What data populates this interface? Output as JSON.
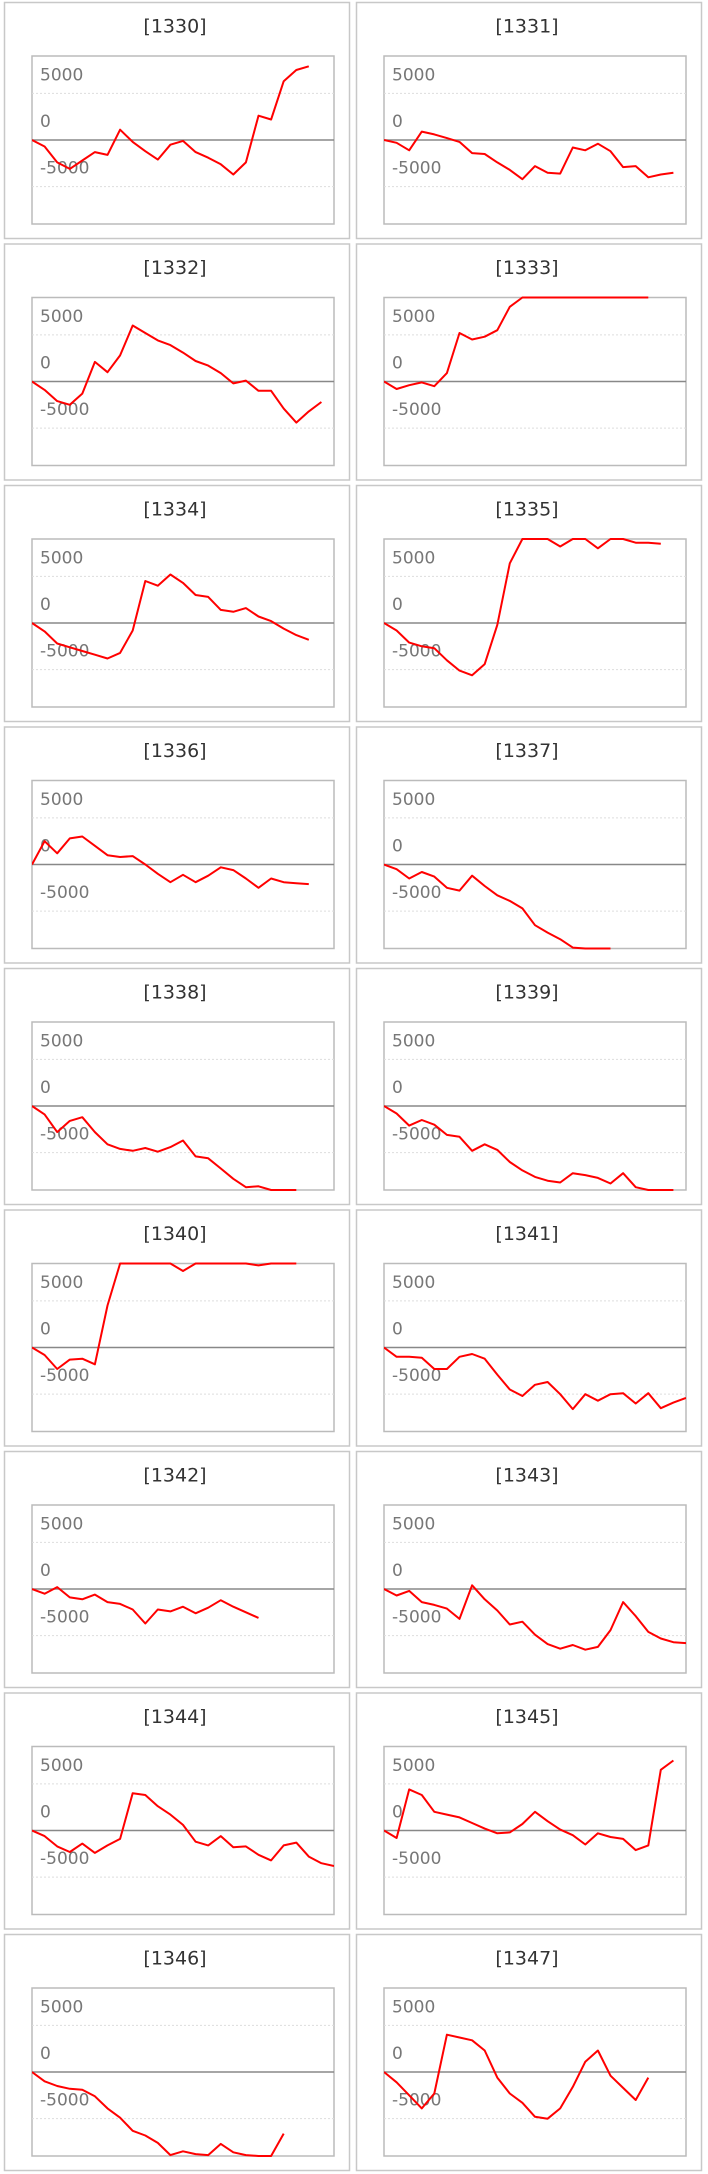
{
  "chart_data": [
    {
      "type": "line",
      "title": "[1330]",
      "color": "#ff0000",
      "ylim": [
        -9000,
        9000
      ],
      "yticks": [
        -5000,
        0,
        5000
      ],
      "grid": true,
      "values": [
        0,
        -700,
        -2400,
        -3100,
        -2200,
        -1300,
        -1600,
        1100,
        -200,
        -1200,
        -2100,
        -500,
        -100,
        -1300,
        -1900,
        -2600,
        -3700,
        -2400,
        2600,
        2200,
        6300,
        7500,
        7900
      ]
    },
    {
      "type": "line",
      "title": "[1331]",
      "color": "#ff0000",
      "ylim": [
        -9000,
        9000
      ],
      "yticks": [
        -5000,
        0,
        5000
      ],
      "grid": true,
      "values": [
        0,
        -300,
        -1100,
        900,
        600,
        200,
        -200,
        -1400,
        -1500,
        -2400,
        -3200,
        -4200,
        -2800,
        -3500,
        -3600,
        -800,
        -1100,
        -400,
        -1200,
        -2900,
        -2800,
        -4000,
        -3700,
        -3500
      ]
    },
    {
      "type": "line",
      "title": "[1332]",
      "color": "#ff0000",
      "ylim": [
        -9000,
        9000
      ],
      "yticks": [
        -5000,
        0,
        5000
      ],
      "grid": true,
      "values": [
        0,
        -900,
        -2100,
        -2500,
        -1300,
        2100,
        1000,
        2800,
        6000,
        5200,
        4400,
        3900,
        3100,
        2200,
        1700,
        900,
        -200,
        100,
        -1000,
        -1000,
        -2900,
        -4400,
        -3200,
        -2200
      ]
    },
    {
      "type": "line",
      "title": "[1333]",
      "color": "#ff0000",
      "ylim": [
        -9000,
        9000
      ],
      "yticks": [
        -5000,
        0,
        5000
      ],
      "grid": true,
      "values": [
        0,
        -800,
        -400,
        -100,
        -500,
        900,
        5200,
        4500,
        4800,
        5500,
        8000,
        9000,
        9000,
        9000,
        9000,
        9000,
        9000,
        9000,
        9000,
        9000,
        9000,
        9000
      ]
    },
    {
      "type": "line",
      "title": "[1334]",
      "color": "#ff0000",
      "ylim": [
        -9000,
        9000
      ],
      "yticks": [
        -5000,
        0,
        5000
      ],
      "grid": true,
      "values": [
        0,
        -900,
        -2200,
        -2600,
        -3000,
        -3400,
        -3800,
        -3200,
        -800,
        4500,
        4000,
        5200,
        4300,
        3000,
        2800,
        1400,
        1200,
        1600,
        700,
        200,
        -600,
        -1300,
        -1800
      ]
    },
    {
      "type": "line",
      "title": "[1335]",
      "color": "#ff0000",
      "ylim": [
        -9000,
        9000
      ],
      "yticks": [
        -5000,
        0,
        5000
      ],
      "grid": true,
      "values": [
        0,
        -800,
        -2100,
        -2500,
        -2700,
        -4000,
        -5100,
        -5600,
        -4400,
        -200,
        6400,
        9000,
        9000,
        9000,
        8200,
        9000,
        9000,
        8000,
        9000,
        9000,
        8600,
        8600,
        8500
      ]
    },
    {
      "type": "line",
      "title": "[1336]",
      "color": "#ff0000",
      "ylim": [
        -9000,
        9000
      ],
      "yticks": [
        -5000,
        0,
        5000
      ],
      "grid": true,
      "values": [
        0,
        2500,
        1200,
        2800,
        3000,
        2000,
        1000,
        800,
        900,
        0,
        -1000,
        -1900,
        -1100,
        -1900,
        -1200,
        -300,
        -600,
        -1500,
        -2500,
        -1500,
        -1900,
        -2000,
        -2100
      ]
    },
    {
      "type": "line",
      "title": "[1337]",
      "color": "#ff0000",
      "ylim": [
        -9000,
        9000
      ],
      "yticks": [
        -5000,
        0,
        5000
      ],
      "grid": true,
      "values": [
        0,
        -500,
        -1500,
        -800,
        -1300,
        -2500,
        -2800,
        -1200,
        -2300,
        -3300,
        -3900,
        -4700,
        -6500,
        -7300,
        -8000,
        -8900,
        -9000,
        -9000,
        -9000
      ]
    },
    {
      "type": "line",
      "title": "[1338]",
      "color": "#ff0000",
      "ylim": [
        -9000,
        9000
      ],
      "yticks": [
        -5000,
        0,
        5000
      ],
      "grid": true,
      "values": [
        0,
        -900,
        -2800,
        -1600,
        -1200,
        -2800,
        -4100,
        -4600,
        -4800,
        -4500,
        -4900,
        -4400,
        -3700,
        -5400,
        -5600,
        -6700,
        -7800,
        -8700,
        -8600,
        -9000,
        -9000,
        -9000
      ]
    },
    {
      "type": "line",
      "title": "[1339]",
      "color": "#ff0000",
      "ylim": [
        -9000,
        9000
      ],
      "yticks": [
        -5000,
        0,
        5000
      ],
      "grid": true,
      "values": [
        0,
        -800,
        -2100,
        -1500,
        -2000,
        -3100,
        -3300,
        -4800,
        -4100,
        -4700,
        -6000,
        -6900,
        -7600,
        -8000,
        -8200,
        -7200,
        -7400,
        -7700,
        -8300,
        -7200,
        -8700,
        -9000,
        -9000,
        -9000
      ]
    },
    {
      "type": "line",
      "title": "[1340]",
      "color": "#ff0000",
      "ylim": [
        -9000,
        9000
      ],
      "yticks": [
        -5000,
        0,
        5000
      ],
      "grid": true,
      "values": [
        0,
        -800,
        -2300,
        -1300,
        -1200,
        -1800,
        4500,
        9000,
        9000,
        9000,
        9000,
        9000,
        8200,
        9000,
        9000,
        9000,
        9000,
        9000,
        8800,
        9000,
        9000,
        9000
      ]
    },
    {
      "type": "line",
      "title": "[1341]",
      "color": "#ff0000",
      "ylim": [
        -9000,
        9000
      ],
      "yticks": [
        -5000,
        0,
        5000
      ],
      "grid": true,
      "values": [
        0,
        -1000,
        -1000,
        -1100,
        -2300,
        -2300,
        -1000,
        -700,
        -1200,
        -2900,
        -4500,
        -5200,
        -4000,
        -3700,
        -5000,
        -6600,
        -5000,
        -5700,
        -5000,
        -4900,
        -6000,
        -4900,
        -6500,
        -5900,
        -5400
      ]
    },
    {
      "type": "line",
      "title": "[1342]",
      "color": "#ff0000",
      "ylim": [
        -9000,
        9000
      ],
      "yticks": [
        -5000,
        0,
        5000
      ],
      "grid": true,
      "values": [
        0,
        -500,
        200,
        -900,
        -1100,
        -600,
        -1400,
        -1600,
        -2200,
        -3700,
        -2200,
        -2400,
        -1900,
        -2600,
        -2000,
        -1200,
        -1900,
        -2500,
        -3100
      ]
    },
    {
      "type": "line",
      "title": "[1343]",
      "color": "#ff0000",
      "ylim": [
        -9000,
        9000
      ],
      "yticks": [
        -5000,
        0,
        5000
      ],
      "grid": true,
      "values": [
        0,
        -700,
        -200,
        -1400,
        -1700,
        -2100,
        -3200,
        400,
        -1100,
        -2300,
        -3800,
        -3500,
        -4900,
        -5900,
        -6400,
        -6000,
        -6500,
        -6200,
        -4400,
        -1400,
        -2900,
        -4600,
        -5300,
        -5700,
        -5800
      ]
    },
    {
      "type": "line",
      "title": "[1344]",
      "color": "#ff0000",
      "ylim": [
        -9000,
        9000
      ],
      "yticks": [
        -5000,
        0,
        5000
      ],
      "grid": true,
      "values": [
        0,
        -600,
        -1700,
        -2300,
        -1400,
        -2400,
        -1600,
        -900,
        4000,
        3800,
        2600,
        1700,
        600,
        -1200,
        -1600,
        -600,
        -1800,
        -1700,
        -2600,
        -3200,
        -1600,
        -1300,
        -2800,
        -3500,
        -3800
      ]
    },
    {
      "type": "line",
      "title": "[1345]",
      "color": "#ff0000",
      "ylim": [
        -9000,
        9000
      ],
      "yticks": [
        -5000,
        0,
        5000
      ],
      "grid": true,
      "values": [
        0,
        -800,
        4400,
        3800,
        2000,
        1700,
        1400,
        800,
        200,
        -300,
        -200,
        700,
        2000,
        1000,
        100,
        -500,
        -1500,
        -300,
        -700,
        -900,
        -2100,
        -1600,
        6500,
        7500
      ]
    },
    {
      "type": "line",
      "title": "[1346]",
      "color": "#ff0000",
      "ylim": [
        -9000,
        9000
      ],
      "yticks": [
        -5000,
        0,
        5000
      ],
      "grid": true,
      "values": [
        0,
        -1000,
        -1500,
        -1800,
        -1900,
        -2600,
        -3900,
        -4900,
        -6300,
        -6800,
        -7600,
        -8900,
        -8500,
        -8800,
        -8900,
        -7700,
        -8600,
        -8900,
        -9000,
        -9000,
        -6600
      ]
    },
    {
      "type": "line",
      "title": "[1347]",
      "color": "#ff0000",
      "ylim": [
        -9000,
        9000
      ],
      "yticks": [
        -5000,
        0,
        5000
      ],
      "grid": true,
      "values": [
        0,
        -1100,
        -2500,
        -3900,
        -2300,
        4000,
        3700,
        3400,
        2300,
        -600,
        -2300,
        -3300,
        -4800,
        -5000,
        -3900,
        -1600,
        1100,
        2300,
        -400,
        -1700,
        -3000,
        -600
      ]
    }
  ]
}
